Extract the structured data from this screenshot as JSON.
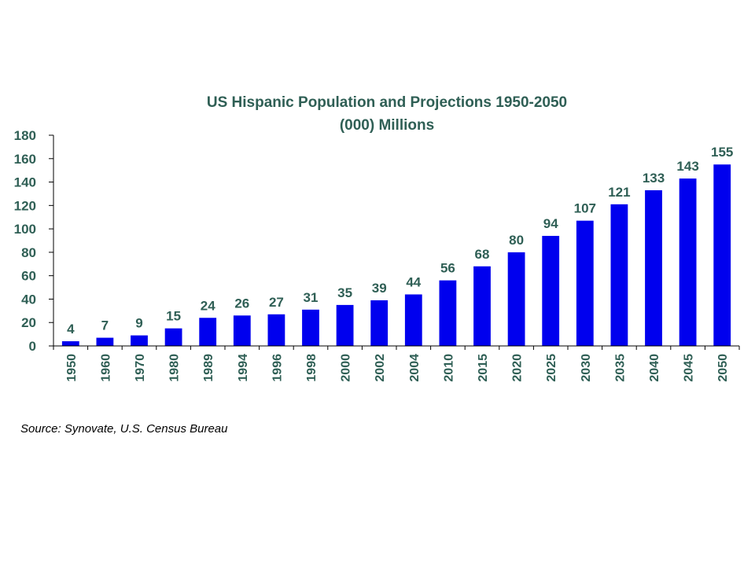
{
  "colors": {
    "bar": "#0000ee",
    "text": "#2f5f55",
    "axis": "#000000"
  },
  "chart_data": {
    "type": "bar",
    "title": "US Hispanic Population and Projections 1950-2050",
    "subtitle": "(000) Millions",
    "categories": [
      "1950",
      "1960",
      "1970",
      "1980",
      "1989",
      "1994",
      "1996",
      "1998",
      "2000",
      "2002",
      "2004",
      "2010",
      "2015",
      "2020",
      "2025",
      "2030",
      "2035",
      "2040",
      "2045",
      "2050"
    ],
    "values": [
      4,
      7,
      9,
      15,
      24,
      26,
      27,
      31,
      35,
      39,
      44,
      56,
      68,
      80,
      94,
      107,
      121,
      133,
      143,
      155
    ],
    "ylim": [
      0,
      180
    ],
    "yticks": [
      0,
      20,
      40,
      60,
      80,
      100,
      120,
      140,
      160,
      180
    ],
    "grid": false,
    "legend": "none"
  },
  "source_note": "Source:  Synovate, U.S. Census Bureau"
}
